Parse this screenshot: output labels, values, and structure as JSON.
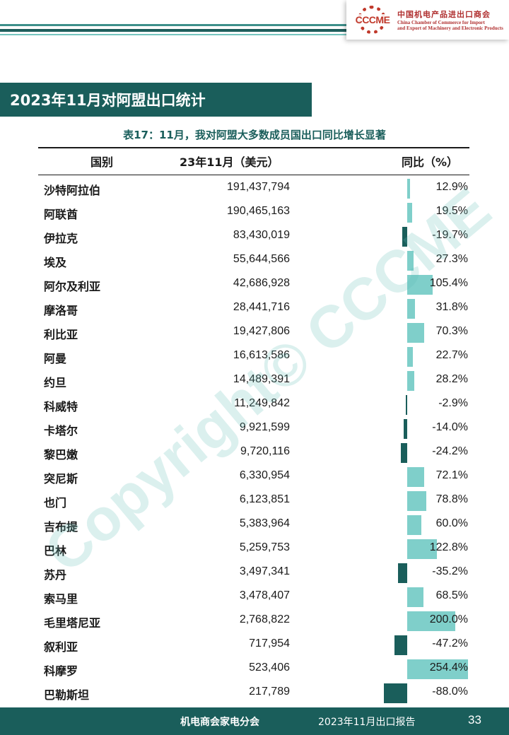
{
  "logo": {
    "mark": "CCCME",
    "cn": "中国机电产品进出口商会",
    "en_line1": "China Chamber of Commerce for Import",
    "en_line2": "and Export of Machinery and Electronic Products"
  },
  "banner": "2023年11月对阿盟出口统计",
  "table": {
    "title": "表17：11月，我对阿盟大多数成员国出口同比增长显著",
    "headers": {
      "country": "国别",
      "value": "23年11月（美元）",
      "yoy": "同比（%）"
    },
    "rows": [
      {
        "country": "沙特阿拉伯",
        "value": "191,437,794",
        "yoy": "12.9%",
        "yoy_num": 12.9
      },
      {
        "country": "阿联酋",
        "value": "190,465,163",
        "yoy": "19.5%",
        "yoy_num": 19.5
      },
      {
        "country": "伊拉克",
        "value": "83,430,019",
        "yoy": "-19.7%",
        "yoy_num": -19.7
      },
      {
        "country": "埃及",
        "value": "55,644,566",
        "yoy": "27.3%",
        "yoy_num": 27.3
      },
      {
        "country": "阿尔及利亚",
        "value": "42,686,928",
        "yoy": "105.4%",
        "yoy_num": 105.4
      },
      {
        "country": "摩洛哥",
        "value": "28,441,716",
        "yoy": "31.8%",
        "yoy_num": 31.8
      },
      {
        "country": "利比亚",
        "value": "19,427,806",
        "yoy": "70.3%",
        "yoy_num": 70.3
      },
      {
        "country": "阿曼",
        "value": "16,613,586",
        "yoy": "22.7%",
        "yoy_num": 22.7
      },
      {
        "country": "约旦",
        "value": "14,489,391",
        "yoy": "28.2%",
        "yoy_num": 28.2
      },
      {
        "country": "科威特",
        "value": "11,249,842",
        "yoy": "-2.9%",
        "yoy_num": -2.9
      },
      {
        "country": "卡塔尔",
        "value": "9,921,599",
        "yoy": "-14.0%",
        "yoy_num": -14.0
      },
      {
        "country": "黎巴嫩",
        "value": "9,720,116",
        "yoy": "-24.2%",
        "yoy_num": -24.2
      },
      {
        "country": "突尼斯",
        "value": "6,330,954",
        "yoy": "72.1%",
        "yoy_num": 72.1
      },
      {
        "country": "也门",
        "value": "6,123,851",
        "yoy": "78.8%",
        "yoy_num": 78.8
      },
      {
        "country": "吉布提",
        "value": "5,383,964",
        "yoy": "60.0%",
        "yoy_num": 60.0
      },
      {
        "country": "巴林",
        "value": "5,259,753",
        "yoy": "122.8%",
        "yoy_num": 122.8
      },
      {
        "country": "苏丹",
        "value": "3,497,341",
        "yoy": "-35.2%",
        "yoy_num": -35.2
      },
      {
        "country": "索马里",
        "value": "3,478,407",
        "yoy": "68.5%",
        "yoy_num": 68.5
      },
      {
        "country": "毛里塔尼亚",
        "value": "2,768,822",
        "yoy": "200.0%",
        "yoy_num": 200.0
      },
      {
        "country": "叙利亚",
        "value": "717,954",
        "yoy": "-47.2%",
        "yoy_num": -47.2
      },
      {
        "country": "科摩罗",
        "value": "523,406",
        "yoy": "254.4%",
        "yoy_num": 254.4
      },
      {
        "country": "巴勒斯坦",
        "value": "217,789",
        "yoy": "-88.0%",
        "yoy_num": -88.0
      }
    ]
  },
  "watermark": "Copyright© CCCME",
  "footer": {
    "org": "机电商会家电分会",
    "report": "2023年11月出口报告",
    "page": "33"
  },
  "colors": {
    "primary": "#1a5e5b",
    "positive_bar": "#7fcfca",
    "negative_bar": "#1a5e5b"
  }
}
